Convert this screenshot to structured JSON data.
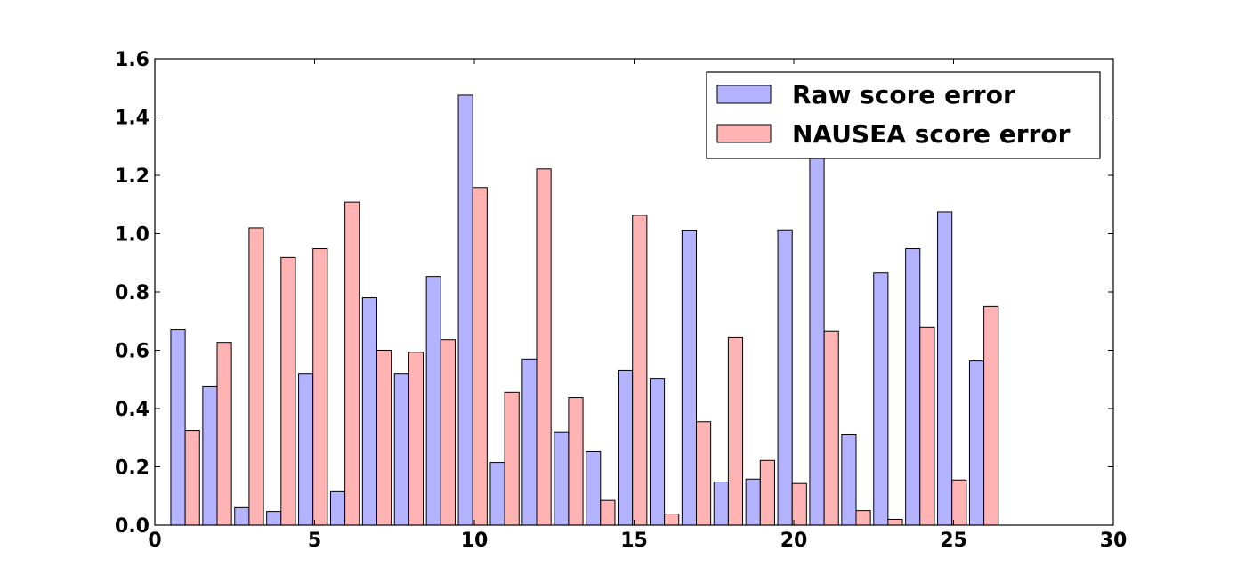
{
  "chart_data": {
    "type": "bar",
    "xlim": [
      0,
      30
    ],
    "ylim": [
      0,
      1.6
    ],
    "xticks": [
      "0",
      "5",
      "10",
      "15",
      "20",
      "25",
      "30"
    ],
    "yticks": [
      "0.0",
      "0.2",
      "0.4",
      "0.6",
      "0.8",
      "1.0",
      "1.2",
      "1.4",
      "1.6"
    ],
    "grid": false,
    "legend_position": "top-right",
    "bar_width": 0.45,
    "series": [
      {
        "name": "Raw score error",
        "color": "#b3b3ff",
        "x": [
          0.5,
          1.5,
          2.5,
          3.5,
          4.5,
          5.5,
          6.5,
          7.5,
          8.5,
          9.5,
          10.5,
          11.5,
          12.5,
          13.5,
          14.5,
          15.5,
          16.5,
          17.5,
          18.5,
          19.5,
          20.5,
          21.5,
          22.5,
          23.5,
          24.5,
          25.5
        ],
        "values": [
          0.67,
          0.475,
          0.06,
          0.047,
          0.52,
          0.115,
          0.78,
          0.52,
          0.853,
          1.475,
          0.215,
          0.57,
          0.32,
          0.252,
          0.53,
          0.502,
          1.012,
          0.148,
          0.158,
          1.013,
          1.3,
          0.31,
          0.865,
          0.948,
          1.075,
          0.563
        ]
      },
      {
        "name": "NAUSEA score error",
        "color": "#ffb3b3",
        "x": [
          0.95,
          1.95,
          2.95,
          3.95,
          4.95,
          5.95,
          6.95,
          7.95,
          8.95,
          9.95,
          10.95,
          11.95,
          12.95,
          13.95,
          14.95,
          15.95,
          16.95,
          17.95,
          18.95,
          19.95,
          20.95,
          21.95,
          22.95,
          23.95,
          24.95,
          25.95
        ],
        "values": [
          0.325,
          0.627,
          1.02,
          0.918,
          0.948,
          1.108,
          0.6,
          0.593,
          0.636,
          1.158,
          0.457,
          1.222,
          0.438,
          0.085,
          1.063,
          0.038,
          0.355,
          0.643,
          0.222,
          0.143,
          0.665,
          0.05,
          0.02,
          0.68,
          0.155,
          0.75
        ]
      }
    ]
  }
}
